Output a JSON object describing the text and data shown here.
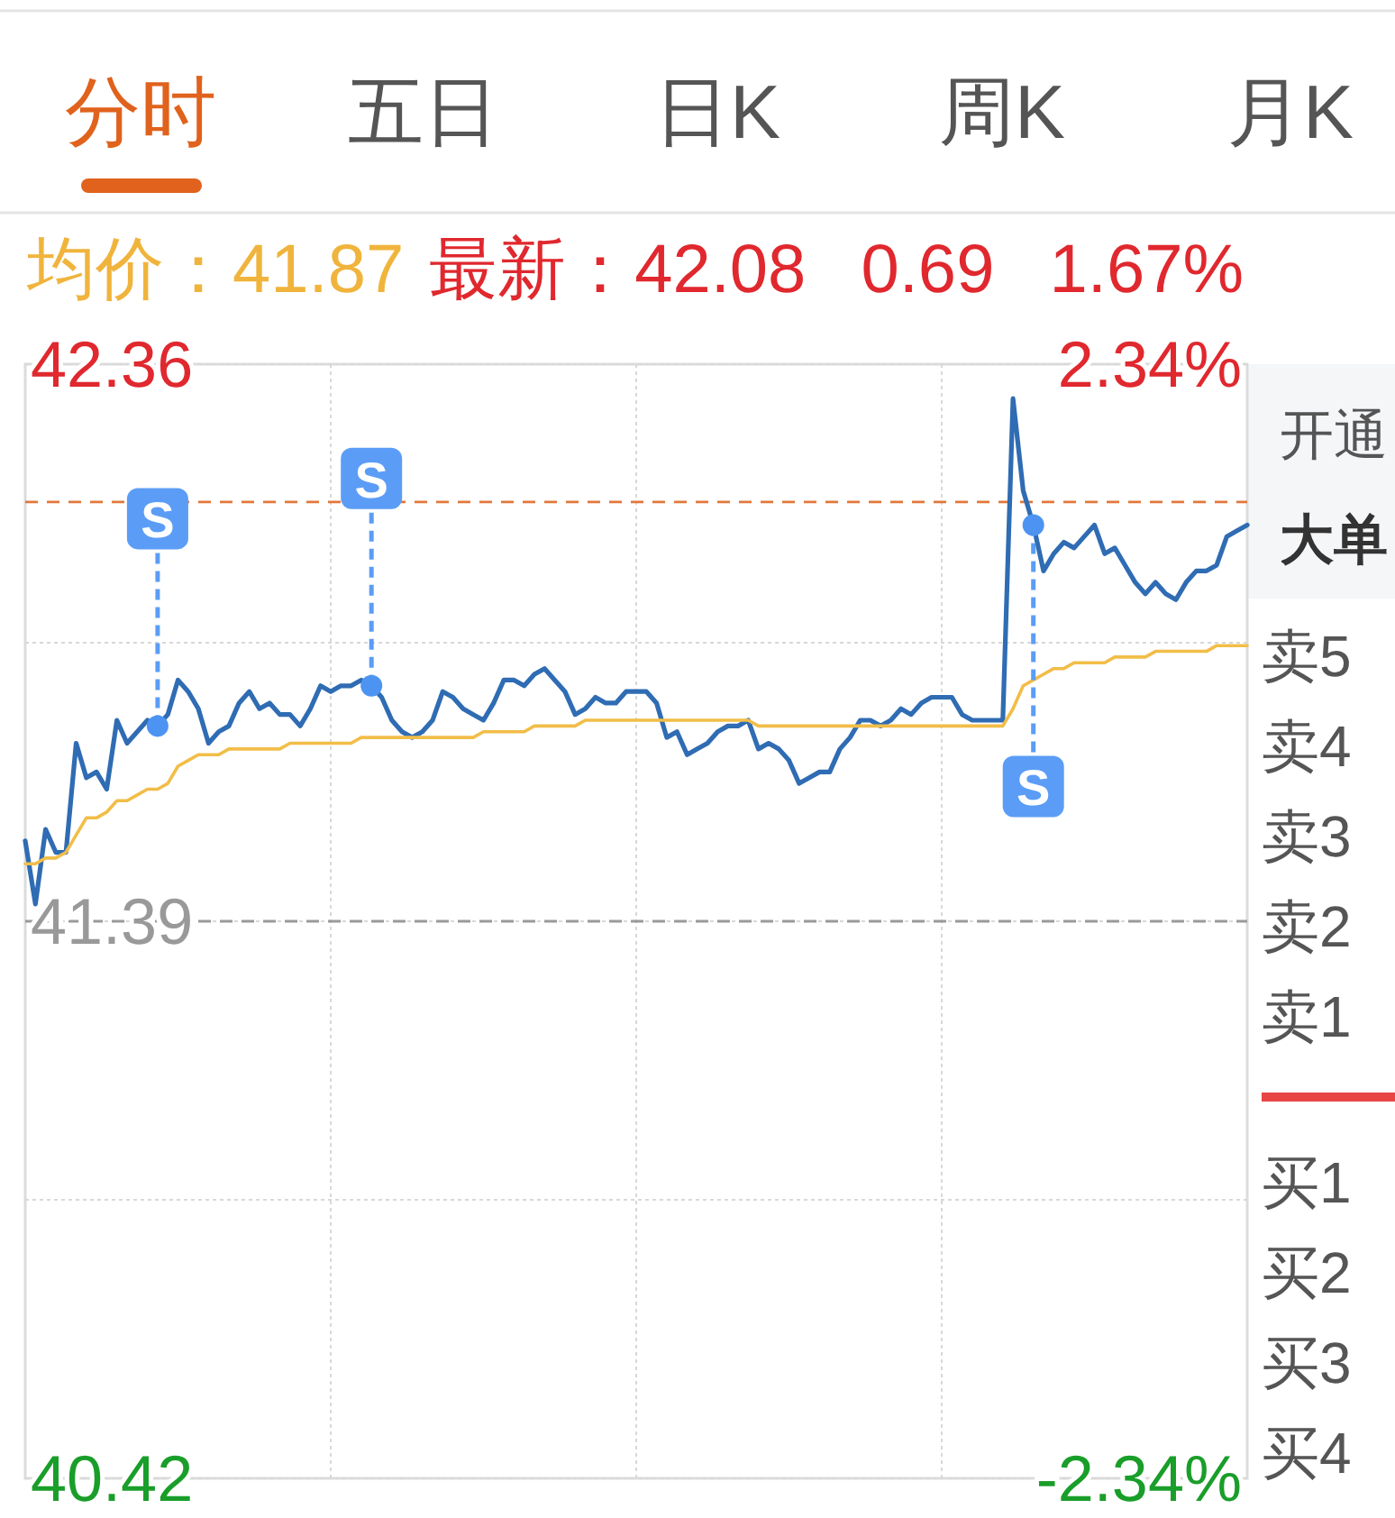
{
  "chart_data": {
    "type": "line",
    "categories": [
      null,
      null,
      null,
      null,
      null,
      null,
      null,
      null,
      null,
      null,
      null,
      null,
      null,
      null,
      null,
      null,
      null,
      null,
      null,
      null,
      null,
      null,
      null,
      null,
      null,
      null,
      null,
      null,
      null,
      null,
      null,
      null,
      null,
      null,
      null,
      null,
      null,
      null,
      null,
      null,
      null,
      null,
      null,
      null,
      null,
      null,
      null,
      null,
      null,
      null,
      null,
      null,
      null,
      null,
      null,
      null,
      null,
      null,
      null,
      null,
      null,
      null,
      null,
      null,
      null,
      null,
      null,
      null,
      null,
      null,
      null,
      null,
      null,
      null,
      null,
      null,
      null,
      null,
      null,
      null,
      null,
      null,
      null,
      null,
      null,
      null,
      null,
      null,
      null,
      null,
      null,
      null,
      null,
      null,
      null,
      null,
      null,
      null,
      null,
      null,
      null,
      null,
      null,
      null,
      null,
      null,
      null,
      null,
      null,
      null,
      null,
      null,
      null,
      null,
      null,
      null,
      null,
      null,
      null,
      null,
      null
    ],
    "series": [
      {
        "color": "#2f6cb3",
        "values": [
          41.53,
          41.42,
          41.55,
          41.51,
          41.51,
          41.7,
          41.64,
          41.65,
          41.62,
          41.74,
          41.7,
          41.72,
          41.74,
          41.73,
          41.75,
          41.81,
          41.79,
          41.76,
          41.7,
          41.72,
          41.73,
          41.77,
          41.79,
          41.76,
          41.77,
          41.75,
          41.75,
          41.73,
          41.76,
          41.8,
          41.79,
          41.8,
          41.8,
          41.81,
          41.8,
          41.78,
          41.74,
          41.72,
          41.71,
          41.72,
          41.74,
          41.79,
          41.78,
          41.76,
          41.75,
          41.74,
          41.77,
          41.81,
          41.81,
          41.8,
          41.82,
          41.83,
          41.81,
          41.79,
          41.75,
          41.76,
          41.78,
          41.77,
          41.77,
          41.79,
          41.79,
          41.79,
          41.77,
          41.71,
          41.72,
          41.68,
          41.69,
          41.7,
          41.72,
          41.73,
          41.73,
          41.74,
          41.69,
          41.7,
          41.69,
          41.67,
          41.63,
          41.64,
          41.65,
          41.65,
          41.69,
          41.71,
          41.74,
          41.74,
          41.73,
          41.74,
          41.76,
          41.75,
          41.77,
          41.78,
          41.78,
          41.78,
          41.75,
          41.74,
          41.74,
          41.74,
          41.74,
          42.3,
          42.14,
          42.08,
          42.0,
          42.03,
          42.05,
          42.04,
          42.06,
          42.08,
          42.03,
          42.04,
          42.01,
          41.98,
          41.96,
          41.98,
          41.96,
          41.95,
          41.98,
          42.0,
          42.0,
          42.01,
          42.06,
          42.07,
          42.08
        ]
      },
      {
        "color": "#f2bd48",
        "values": [
          41.49,
          41.49,
          41.5,
          41.5,
          41.51,
          41.54,
          41.57,
          41.57,
          41.58,
          41.6,
          41.6,
          41.61,
          41.62,
          41.62,
          41.63,
          41.66,
          41.67,
          41.68,
          41.68,
          41.68,
          41.69,
          41.69,
          41.69,
          41.69,
          41.69,
          41.69,
          41.7,
          41.7,
          41.7,
          41.7,
          41.7,
          41.7,
          41.7,
          41.71,
          41.71,
          41.71,
          41.71,
          41.71,
          41.71,
          41.71,
          41.71,
          41.71,
          41.71,
          41.71,
          41.71,
          41.72,
          41.72,
          41.72,
          41.72,
          41.72,
          41.73,
          41.73,
          41.73,
          41.73,
          41.73,
          41.74,
          41.74,
          41.74,
          41.74,
          41.74,
          41.74,
          41.74,
          41.74,
          41.74,
          41.74,
          41.74,
          41.74,
          41.74,
          41.74,
          41.74,
          41.74,
          41.74,
          41.73,
          41.73,
          41.73,
          41.73,
          41.73,
          41.73,
          41.73,
          41.73,
          41.73,
          41.73,
          41.73,
          41.73,
          41.73,
          41.73,
          41.73,
          41.73,
          41.73,
          41.73,
          41.73,
          41.73,
          41.73,
          41.73,
          41.73,
          41.73,
          41.73,
          41.76,
          41.8,
          41.81,
          41.82,
          41.83,
          41.83,
          41.84,
          41.84,
          41.84,
          41.84,
          41.85,
          41.85,
          41.85,
          41.85,
          41.86,
          41.86,
          41.86,
          41.86,
          41.86,
          41.86,
          41.87,
          41.87,
          41.87,
          41.87
        ]
      },
      {
        "type": "scatter",
        "color": "#4d94f2",
        "marker": "circle",
        "values": [
          null,
          null,
          null,
          null,
          null,
          null,
          null,
          null,
          null,
          null,
          null,
          null,
          null,
          41.73,
          null,
          null,
          null,
          null,
          null,
          null,
          null,
          null,
          null,
          null,
          null,
          null,
          null,
          null,
          null,
          null,
          null,
          null,
          null,
          null,
          41.8,
          null,
          null,
          null,
          null,
          null,
          null,
          null,
          null,
          null,
          null,
          null,
          null,
          null,
          null,
          null,
          null,
          null,
          null,
          null,
          null,
          null,
          null,
          null,
          null,
          null,
          null,
          null,
          null,
          null,
          null,
          null,
          null,
          null,
          null,
          null,
          null,
          null,
          null,
          null,
          null,
          null,
          null,
          null,
          null,
          null,
          null,
          null,
          null,
          null,
          null,
          null,
          null,
          null,
          null,
          null,
          null,
          null,
          null,
          null,
          null,
          null,
          null,
          null,
          null,
          42.08,
          null,
          null,
          null,
          null,
          null,
          null,
          null,
          null,
          null,
          null,
          null,
          null,
          null,
          null,
          null,
          null,
          null,
          null,
          null,
          null,
          null
        ],
        "value_labels": [
          null,
          null,
          null,
          null,
          null,
          null,
          null,
          null,
          null,
          null,
          null,
          null,
          null,
          "S",
          null,
          null,
          null,
          null,
          null,
          null,
          null,
          null,
          null,
          null,
          null,
          null,
          null,
          null,
          null,
          null,
          null,
          null,
          null,
          null,
          "S",
          null,
          null,
          null,
          null,
          null,
          null,
          null,
          null,
          null,
          null,
          null,
          null,
          null,
          null,
          null,
          null,
          null,
          null,
          null,
          null,
          null,
          null,
          null,
          null,
          null,
          null,
          null,
          null,
          null,
          null,
          null,
          null,
          null,
          null,
          null,
          null,
          null,
          null,
          null,
          null,
          null,
          null,
          null,
          null,
          null,
          null,
          null,
          null,
          null,
          null,
          null,
          null,
          null,
          null,
          null,
          null,
          null,
          null,
          null,
          null,
          null,
          null,
          null,
          null,
          "S",
          null,
          null,
          null,
          null,
          null,
          null,
          null,
          null,
          null,
          null,
          null,
          null,
          null,
          null,
          null,
          null,
          null,
          null,
          null,
          null,
          null
        ]
      }
    ],
    "ylim": [
      40.42,
      42.36
    ],
    "yticks": [
      42.36,
      {
        "value": 41.875,
        "label": null
      },
      41.39,
      {
        "value": 40.905,
        "label": null
      },
      40.42
    ],
    "y2lim": [
      -2.34,
      2.34
    ],
    "y2ticks": [
      {
        "value": 2.34,
        "label": "2.34%"
      },
      {
        "value": -2.34,
        "label": "-2.34%"
      }
    ],
    "ref_lines": [
      {
        "axis": "y",
        "value": 41.39,
        "label": null,
        "color": "#9a9a9a",
        "line_style": "dashed"
      },
      {
        "axis": "y",
        "value": 42.12,
        "label": null,
        "color": "#e2783a",
        "line_style": "dashed"
      }
    ],
    "grid": true,
    "annotations": [
      "分时",
      "五日",
      "日K",
      "周K",
      "月K",
      "均价：41.87",
      "最新：42.08 0.69 1.67%",
      "开通",
      "大单",
      "卖5",
      "卖4",
      "卖3",
      "卖2",
      "卖1",
      "买1",
      "买2",
      "买3",
      "买4"
    ]
  }
}
